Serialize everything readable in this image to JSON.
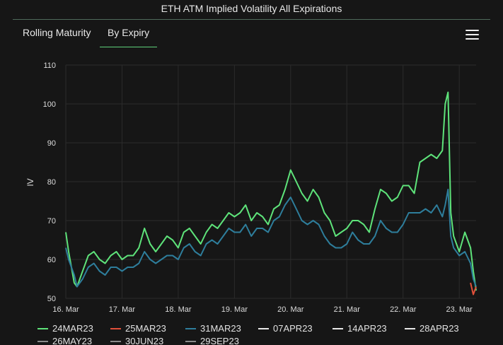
{
  "title": "ETH ATM Implied Volatility All Expirations",
  "tabs": [
    {
      "label": "Rolling Maturity",
      "active": false
    },
    {
      "label": "By Expiry",
      "active": true
    }
  ],
  "chart_data": {
    "type": "line",
    "ylabel": "IV",
    "ylim": [
      50,
      110
    ],
    "yticks": [
      50,
      60,
      70,
      80,
      90,
      100,
      110
    ],
    "xlim": [
      0,
      7.3
    ],
    "xticks": [
      {
        "pos": 0,
        "label": "16. Mar"
      },
      {
        "pos": 1,
        "label": "17. Mar"
      },
      {
        "pos": 2,
        "label": "18. Mar"
      },
      {
        "pos": 3,
        "label": "19. Mar"
      },
      {
        "pos": 4,
        "label": "20. Mar"
      },
      {
        "pos": 5,
        "label": "21. Mar"
      },
      {
        "pos": 6,
        "label": "22. Mar"
      },
      {
        "pos": 7,
        "label": "23. Mar"
      }
    ],
    "series": [
      {
        "name": "24MAR23",
        "color": "#5ee37a",
        "x": [
          0,
          0.05,
          0.15,
          0.2,
          0.3,
          0.4,
          0.5,
          0.6,
          0.7,
          0.8,
          0.9,
          1.0,
          1.1,
          1.2,
          1.3,
          1.4,
          1.5,
          1.6,
          1.7,
          1.8,
          1.9,
          2.0,
          2.1,
          2.2,
          2.3,
          2.4,
          2.5,
          2.6,
          2.7,
          2.8,
          2.9,
          3.0,
          3.1,
          3.2,
          3.3,
          3.4,
          3.5,
          3.6,
          3.7,
          3.8,
          3.9,
          4.0,
          4.1,
          4.2,
          4.3,
          4.4,
          4.5,
          4.6,
          4.7,
          4.8,
          4.9,
          5.0,
          5.1,
          5.2,
          5.3,
          5.4,
          5.5,
          5.6,
          5.7,
          5.8,
          5.9,
          6.0,
          6.1,
          6.2,
          6.3,
          6.4,
          6.5,
          6.6,
          6.7,
          6.75,
          6.8,
          6.85,
          6.9,
          7.0,
          7.1,
          7.2,
          7.25,
          7.3
        ],
        "values": [
          67,
          62,
          54,
          53,
          57,
          61,
          62,
          60,
          59,
          61,
          62,
          60,
          61,
          61,
          63,
          68,
          64,
          62,
          64,
          66,
          65,
          63,
          67,
          68,
          66,
          64,
          67,
          69,
          68,
          70,
          72,
          71,
          72,
          74,
          70,
          72,
          71,
          69,
          73,
          74,
          78,
          83,
          80,
          77,
          75,
          78,
          76,
          72,
          70,
          66,
          67,
          68,
          70,
          70,
          69,
          67,
          73,
          78,
          77,
          75,
          76,
          79,
          79,
          77,
          85,
          86,
          87,
          86,
          88,
          100,
          103,
          72,
          66,
          62,
          67,
          63,
          57,
          52
        ]
      },
      {
        "name": "31MAR23",
        "color": "#2e7e9c",
        "x": [
          0,
          0.05,
          0.15,
          0.2,
          0.3,
          0.4,
          0.5,
          0.6,
          0.7,
          0.8,
          0.9,
          1.0,
          1.1,
          1.2,
          1.3,
          1.4,
          1.5,
          1.6,
          1.7,
          1.8,
          1.9,
          2.0,
          2.1,
          2.2,
          2.3,
          2.4,
          2.5,
          2.6,
          2.7,
          2.8,
          2.9,
          3.0,
          3.1,
          3.2,
          3.3,
          3.4,
          3.5,
          3.6,
          3.7,
          3.8,
          3.9,
          4.0,
          4.1,
          4.2,
          4.3,
          4.4,
          4.5,
          4.6,
          4.7,
          4.8,
          4.9,
          5.0,
          5.1,
          5.2,
          5.3,
          5.4,
          5.5,
          5.6,
          5.7,
          5.8,
          5.9,
          6.0,
          6.1,
          6.2,
          6.3,
          6.4,
          6.5,
          6.6,
          6.7,
          6.75,
          6.8,
          6.85,
          6.9,
          7.0,
          7.1,
          7.2,
          7.25,
          7.3
        ],
        "values": [
          63,
          60,
          56,
          53,
          55,
          58,
          59,
          57,
          56,
          58,
          58,
          57,
          58,
          58,
          59,
          62,
          60,
          59,
          60,
          61,
          61,
          60,
          63,
          64,
          62,
          61,
          64,
          65,
          64,
          66,
          68,
          67,
          67,
          69,
          66,
          68,
          68,
          67,
          70,
          71,
          74,
          76,
          73,
          70,
          69,
          70,
          69,
          66,
          64,
          63,
          63,
          64,
          67,
          65,
          64,
          64,
          66,
          70,
          68,
          67,
          67,
          69,
          72,
          72,
          72,
          73,
          72,
          74,
          71,
          74,
          78,
          66,
          63,
          61,
          62,
          59,
          55,
          53
        ]
      },
      {
        "name": "25MAR23",
        "color": "#e0503a",
        "x": [
          7.2,
          7.25,
          7.3
        ],
        "values": [
          54,
          51,
          53
        ]
      }
    ],
    "legend": [
      {
        "name": "24MAR23",
        "color": "#5ee37a"
      },
      {
        "name": "25MAR23",
        "color": "#e0503a"
      },
      {
        "name": "31MAR23",
        "color": "#2e7e9c"
      },
      {
        "name": "07APR23",
        "color": "#e8e8e8"
      },
      {
        "name": "14APR23",
        "color": "#e8e8e8"
      },
      {
        "name": "28APR23",
        "color": "#e8e8e8"
      },
      {
        "name": "26MAY23",
        "color": "#8a8a8a"
      },
      {
        "name": "30JUN23",
        "color": "#8a8a8a"
      },
      {
        "name": "29SEP23",
        "color": "#8a8a8a"
      }
    ]
  }
}
